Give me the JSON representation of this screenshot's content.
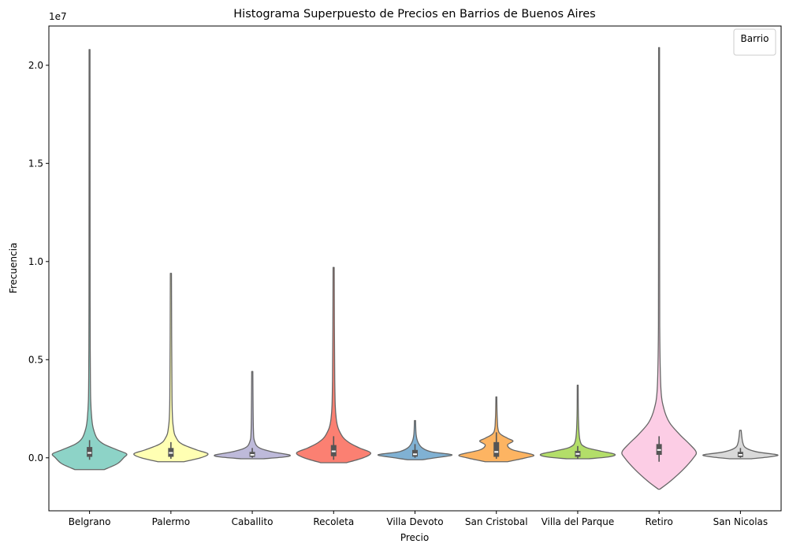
{
  "chart_data": {
    "type": "violin",
    "title": "Histograma Superpuesto de Precios en Barrios de Buenos Aires",
    "xlabel": "Precio",
    "ylabel": "Frecuencia",
    "y_scale_label": "1e7",
    "ylim": [
      -2700000,
      22000000
    ],
    "yticks": [
      0.0,
      0.5,
      1.0,
      1.5,
      2.0
    ],
    "ytick_labels": [
      "0.0",
      "0.5",
      "1.0",
      "1.5",
      "2.0"
    ],
    "legend": {
      "title": "Barrio",
      "position": "top-right",
      "entries": []
    },
    "grid": false,
    "categories": [
      "Belgrano",
      "Palermo",
      "Caballito",
      "Recoleta",
      "Villa Devoto",
      "San Cristobal",
      "Villa del Parque",
      "Retiro",
      "San Nicolas"
    ],
    "series": [
      {
        "category": "Belgrano",
        "color": "#8dd3c7",
        "min": -600000,
        "max": 20800000,
        "q1": 50000,
        "median": 250000,
        "q3": 550000,
        "whisker_low": -100000,
        "whisker_high": 900000,
        "density": [
          [
            -600000,
            0.4
          ],
          [
            -300000,
            0.75
          ],
          [
            0,
            0.92
          ],
          [
            200000,
            1.0
          ],
          [
            400000,
            0.75
          ],
          [
            700000,
            0.38
          ],
          [
            1000000,
            0.2
          ],
          [
            1500000,
            0.1
          ],
          [
            2000000,
            0.06
          ],
          [
            3000000,
            0.03
          ],
          [
            5000000,
            0.02
          ],
          [
            8000000,
            0.015
          ],
          [
            20800000,
            0.012
          ]
        ]
      },
      {
        "category": "Palermo",
        "color": "#ffffb3",
        "min": -200000,
        "max": 9400000,
        "q1": 50000,
        "median": 250000,
        "q3": 500000,
        "whisker_low": -50000,
        "whisker_high": 800000,
        "density": [
          [
            -200000,
            0.35
          ],
          [
            0,
            0.8
          ],
          [
            200000,
            1.0
          ],
          [
            400000,
            0.7
          ],
          [
            700000,
            0.3
          ],
          [
            1000000,
            0.15
          ],
          [
            1500000,
            0.07
          ],
          [
            3000000,
            0.03
          ],
          [
            9400000,
            0.015
          ]
        ]
      },
      {
        "category": "Caballito",
        "color": "#bebada",
        "min": -50000,
        "max": 4400000,
        "q1": 50000,
        "median": 150000,
        "q3": 300000,
        "whisker_low": 0,
        "whisker_high": 500000,
        "density": [
          [
            -50000,
            0.3
          ],
          [
            50000,
            0.9
          ],
          [
            150000,
            1.0
          ],
          [
            300000,
            0.55
          ],
          [
            500000,
            0.2
          ],
          [
            800000,
            0.07
          ],
          [
            1500000,
            0.03
          ],
          [
            4400000,
            0.015
          ]
        ]
      },
      {
        "category": "Recoleta",
        "color": "#fb8072",
        "min": -250000,
        "max": 9700000,
        "q1": 80000,
        "median": 330000,
        "q3": 650000,
        "whisker_low": -100000,
        "whisker_high": 1100000,
        "density": [
          [
            -250000,
            0.35
          ],
          [
            0,
            0.8
          ],
          [
            250000,
            1.0
          ],
          [
            500000,
            0.7
          ],
          [
            800000,
            0.4
          ],
          [
            1200000,
            0.2
          ],
          [
            2000000,
            0.07
          ],
          [
            4000000,
            0.03
          ],
          [
            9700000,
            0.015
          ]
        ]
      },
      {
        "category": "Villa Devoto",
        "color": "#80b1d3",
        "min": -100000,
        "max": 1900000,
        "q1": 60000,
        "median": 180000,
        "q3": 400000,
        "whisker_low": 0,
        "whisker_high": 700000,
        "density": [
          [
            -100000,
            0.2
          ],
          [
            0,
            0.55
          ],
          [
            150000,
            1.0
          ],
          [
            300000,
            0.45
          ],
          [
            500000,
            0.2
          ],
          [
            800000,
            0.08
          ],
          [
            1200000,
            0.03
          ],
          [
            1900000,
            0.015
          ]
        ]
      },
      {
        "category": "San Cristobal",
        "color": "#fdb462",
        "min": -200000,
        "max": 3100000,
        "q1": 50000,
        "median": 300000,
        "q3": 800000,
        "whisker_low": -50000,
        "whisker_high": 1300000,
        "density": [
          [
            -200000,
            0.3
          ],
          [
            0,
            0.8
          ],
          [
            150000,
            1.0
          ],
          [
            400000,
            0.45
          ],
          [
            650000,
            0.3
          ],
          [
            850000,
            0.45
          ],
          [
            1000000,
            0.3
          ],
          [
            1300000,
            0.07
          ],
          [
            2000000,
            0.025
          ],
          [
            3100000,
            0.012
          ]
        ]
      },
      {
        "category": "Villa del Parque",
        "color": "#b3de69",
        "min": -50000,
        "max": 3700000,
        "q1": 50000,
        "median": 200000,
        "q3": 350000,
        "whisker_low": -50000,
        "whisker_high": 600000,
        "density": [
          [
            -50000,
            0.3
          ],
          [
            50000,
            0.85
          ],
          [
            180000,
            1.0
          ],
          [
            350000,
            0.6
          ],
          [
            550000,
            0.2
          ],
          [
            900000,
            0.06
          ],
          [
            2000000,
            0.02
          ],
          [
            3700000,
            0.012
          ]
        ]
      },
      {
        "category": "Retiro",
        "color": "#fccde5",
        "min": -1600000,
        "max": 20900000,
        "q1": 150000,
        "median": 400000,
        "q3": 700000,
        "whisker_low": -200000,
        "whisker_high": 1100000,
        "density": [
          [
            -1600000,
            0.02
          ],
          [
            -1200000,
            0.3
          ],
          [
            -600000,
            0.65
          ],
          [
            0,
            0.93
          ],
          [
            300000,
            1.0
          ],
          [
            700000,
            0.82
          ],
          [
            1200000,
            0.55
          ],
          [
            1800000,
            0.28
          ],
          [
            2500000,
            0.13
          ],
          [
            3500000,
            0.05
          ],
          [
            6000000,
            0.02
          ],
          [
            10000000,
            0.015
          ],
          [
            20900000,
            0.012
          ]
        ]
      },
      {
        "category": "San Nicolas",
        "color": "#d9d9d9",
        "min": -50000,
        "max": 1400000,
        "q1": 40000,
        "median": 150000,
        "q3": 300000,
        "whisker_low": 0,
        "whisker_high": 500000,
        "density": [
          [
            -50000,
            0.3
          ],
          [
            50000,
            0.8
          ],
          [
            150000,
            1.0
          ],
          [
            300000,
            0.45
          ],
          [
            500000,
            0.15
          ],
          [
            800000,
            0.06
          ],
          [
            1400000,
            0.02
          ]
        ]
      }
    ]
  }
}
